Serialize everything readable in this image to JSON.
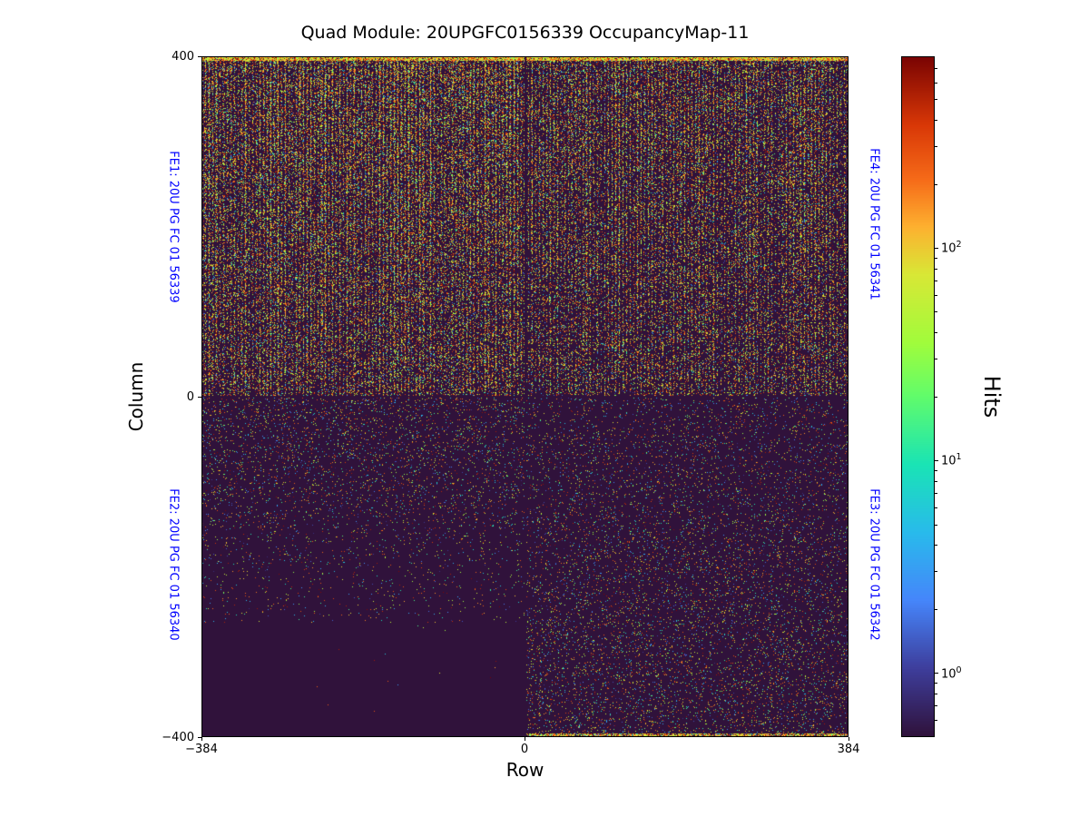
{
  "title": "Quad Module: 20UPGFC0156339 OccupancyMap-11",
  "label_color": "#0000ff",
  "axes": {
    "xlabel": "Row",
    "ylabel": "Column",
    "xlim": [
      -384,
      384
    ],
    "ylim": [
      -400,
      400
    ],
    "xticks": [
      {
        "label": "−384",
        "value": -384
      },
      {
        "label": "0",
        "value": 0
      },
      {
        "label": "384",
        "value": 384
      }
    ],
    "yticks": [
      {
        "label": "400",
        "value": 400
      },
      {
        "label": "0",
        "value": 0
      },
      {
        "label": "−400",
        "value": -400
      }
    ]
  },
  "colorbar": {
    "label": "Hits",
    "scale": "log",
    "vmin": 0.5,
    "vmax": 800,
    "colormap": "turbo",
    "major_ticks": [
      {
        "value": 100,
        "exponent": 2
      },
      {
        "value": 10,
        "exponent": 1
      },
      {
        "value": 1,
        "exponent": 0
      }
    ],
    "gradient_stops": [
      {
        "t": 0.0,
        "color": "#30123b"
      },
      {
        "t": 0.1,
        "color": "#3e3e9c"
      },
      {
        "t": 0.2,
        "color": "#4686fb"
      },
      {
        "t": 0.3,
        "color": "#29bbec"
      },
      {
        "t": 0.4,
        "color": "#1ae4b6"
      },
      {
        "t": 0.5,
        "color": "#61fc6c"
      },
      {
        "t": 0.58,
        "color": "#a2fc3c"
      },
      {
        "t": 0.68,
        "color": "#d9e836"
      },
      {
        "t": 0.75,
        "color": "#feb130"
      },
      {
        "t": 0.82,
        "color": "#f66b19"
      },
      {
        "t": 0.9,
        "color": "#d93807"
      },
      {
        "t": 1.0,
        "color": "#7a0403"
      }
    ]
  },
  "fe_labels": [
    {
      "id": "FE1",
      "text": "FE1: 20U PG FC 01 56339",
      "side": "left",
      "half": "top"
    },
    {
      "id": "FE2",
      "text": "FE2: 20U PG FC 01 56340",
      "side": "left",
      "half": "bottom"
    },
    {
      "id": "FE4",
      "text": "FE4: 20U PG FC 01 56341",
      "side": "right",
      "half": "top"
    },
    {
      "id": "FE3",
      "text": "FE3: 20U PG FC 01 56342",
      "side": "right",
      "half": "bottom"
    }
  ],
  "chart_data": {
    "type": "heatmap",
    "title": "Quad Module: 20UPGFC0156339 OccupancyMap-11",
    "xlabel": "Row",
    "ylabel": "Column",
    "xlim": [
      -384,
      384
    ],
    "ylim": [
      -400,
      400
    ],
    "xticks": [
      -384,
      0,
      384
    ],
    "yticks": [
      -400,
      0,
      400
    ],
    "colorbar": {
      "label": "Hits",
      "scale": "log",
      "range_approx": [
        0.5,
        800
      ],
      "colormap": "turbo",
      "ticks": [
        1,
        10,
        100
      ]
    },
    "legend_position": "right-colorbar",
    "grid": false,
    "chips": [
      {
        "name": "FE1",
        "serial": "20U PG FC 01 56339",
        "quadrant": "top-left",
        "row_range": [
          -384,
          0
        ],
        "col_range": [
          0,
          400
        ],
        "occupancy": "high; dense multicolor speckles in regular vertical stripes; near-solid hot orange/yellow band at top edge (col ~ 400)"
      },
      {
        "name": "FE4",
        "serial": "20U PG FC 01 56341",
        "quadrant": "top-right",
        "row_range": [
          0,
          384
        ],
        "col_range": [
          0,
          400
        ],
        "occupancy": "moderate-high; vertical-stripe speckle pattern slightly sparser than FE1; hot band at top edge"
      },
      {
        "name": "FE2",
        "serial": "20U PG FC 01 56340",
        "quadrant": "bottom-left",
        "row_range": [
          -384,
          0
        ],
        "col_range": [
          -400,
          0
        ],
        "occupancy": "low; sparse speckles fading toward bottom; nearly empty uniform dark rectangle for col below ~ -265"
      },
      {
        "name": "FE3",
        "serial": "20U PG FC 01 56342",
        "quadrant": "bottom-right",
        "row_range": [
          0,
          384
        ],
        "col_range": [
          -400,
          0
        ],
        "occupancy": "low-to-moderate; uniform sparse speckles; dense warm band at bottom edge (col ~ -400)"
      }
    ],
    "structure_notes": "dark seam lines at row = 0 and column = 0 separating the four front-end chips; background at colormap minimum (dark purple ~ #30123b)"
  }
}
